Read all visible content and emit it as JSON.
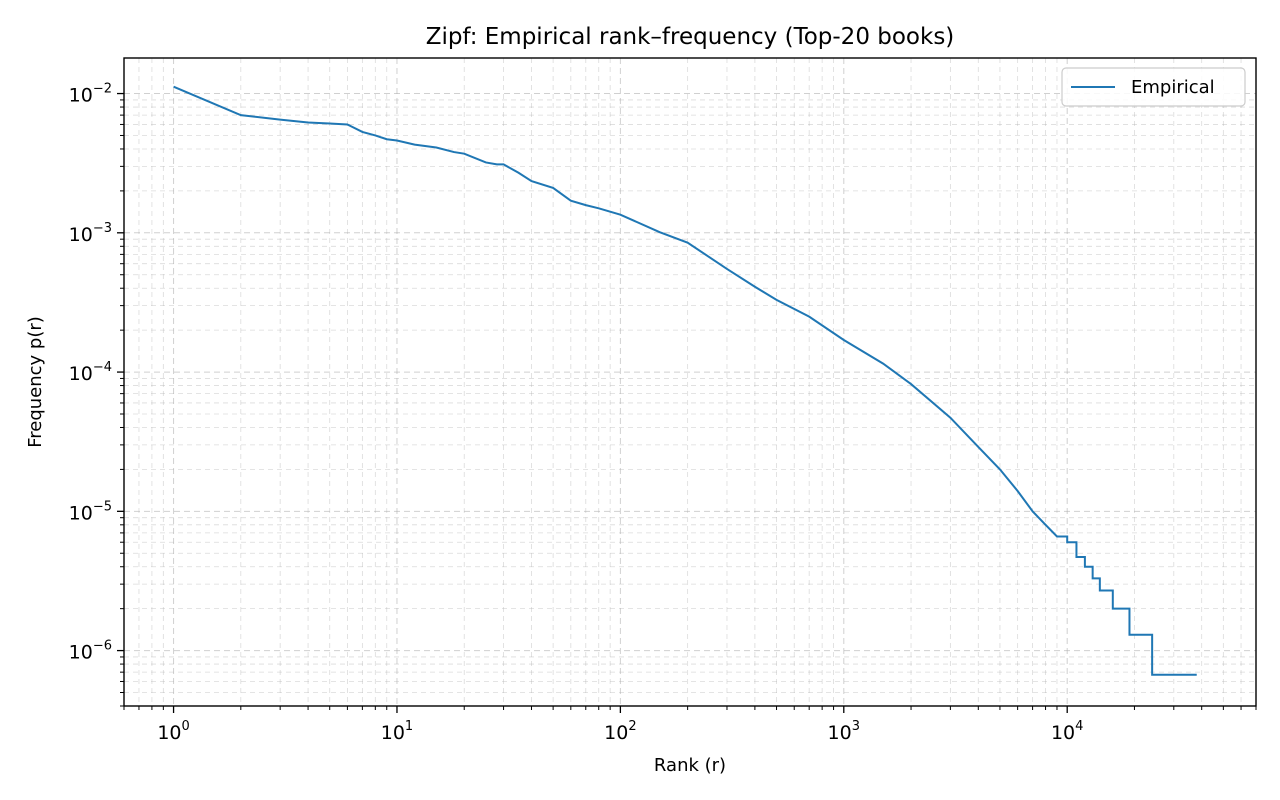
{
  "chart_data": {
    "type": "line",
    "title": "Zipf: Empirical rank–frequency (Top-20 books)",
    "xlabel": "Rank (r)",
    "ylabel": "Frequency p(r)",
    "xscale": "log",
    "yscale": "log",
    "xlim": [
      0.6,
      70000
    ],
    "ylim": [
      4e-07,
      0.018
    ],
    "xticks": [
      {
        "value": 1,
        "base": "10",
        "exp": "0"
      },
      {
        "value": 10,
        "base": "10",
        "exp": "1"
      },
      {
        "value": 100,
        "base": "10",
        "exp": "2"
      },
      {
        "value": 1000,
        "base": "10",
        "exp": "3"
      },
      {
        "value": 10000,
        "base": "10",
        "exp": "4"
      }
    ],
    "yticks": [
      {
        "value": 0.01,
        "base": "10",
        "exp": "−2"
      },
      {
        "value": 0.001,
        "base": "10",
        "exp": "−3"
      },
      {
        "value": 0.0001,
        "base": "10",
        "exp": "−4"
      },
      {
        "value": 1e-05,
        "base": "10",
        "exp": "−5"
      },
      {
        "value": 1e-06,
        "base": "10",
        "exp": "−6"
      }
    ],
    "grid": true,
    "legend_position": "top-right",
    "series": [
      {
        "name": "Empirical",
        "color": "#1f77b4",
        "x": [
          1,
          2,
          3,
          4,
          5,
          6,
          7,
          8,
          9,
          10,
          12,
          15,
          18,
          20,
          25,
          28,
          30,
          35,
          40,
          50,
          60,
          70,
          80,
          100,
          150,
          200,
          300,
          400,
          500,
          700,
          1000,
          1500,
          2000,
          3000,
          4000,
          5000,
          6000,
          7000,
          8000,
          9000,
          10000,
          11000,
          12000,
          13000,
          14000,
          16000,
          19000,
          24000,
          38000
        ],
        "y": [
          0.0112,
          0.007,
          0.0065,
          0.0062,
          0.0061,
          0.006,
          0.0053,
          0.005,
          0.0047,
          0.0046,
          0.0043,
          0.0041,
          0.0038,
          0.0037,
          0.0032,
          0.0031,
          0.0031,
          0.0027,
          0.00235,
          0.0021,
          0.0017,
          0.00158,
          0.0015,
          0.00135,
          0.00101,
          0.00085,
          0.00055,
          0.00041,
          0.00033,
          0.00025,
          0.00017,
          0.000115,
          8.2e-05,
          4.7e-05,
          2.9e-05,
          2e-05,
          1.4e-05,
          1e-05,
          8e-06,
          6.6e-06,
          6e-06,
          4.7e-06,
          4e-06,
          3.3e-06,
          2.7e-06,
          2e-06,
          1.3e-06,
          6.7e-07,
          6.7e-07
        ]
      }
    ]
  }
}
